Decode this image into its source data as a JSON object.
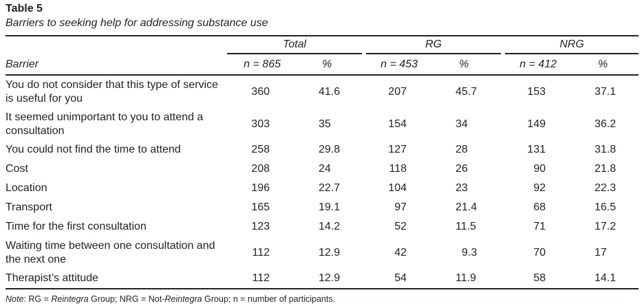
{
  "title": "Table 5",
  "subtitle": "Barriers to seeking help for addressing substance use",
  "groups": {
    "total": "Total",
    "rg": "RG",
    "nrg": "NRG"
  },
  "subheaders": {
    "barrier": "Barrier",
    "total_n": "n = 865",
    "total_pct": "%",
    "rg_n": "n = 453",
    "rg_pct": "%",
    "nrg_n": "n = 412",
    "nrg_pct": "%"
  },
  "rows": [
    {
      "barrier": "You do not consider that this type of service is useful for you",
      "total_n": "360",
      "total_pct": "41.6",
      "rg_n": "207",
      "rg_pct": "45.7",
      "nrg_n": "153",
      "nrg_pct": "37.1"
    },
    {
      "barrier": "It seemed unimportant to you to attend a consultation",
      "total_n": "303",
      "total_pct": "35",
      "rg_n": "154",
      "rg_pct": "34",
      "nrg_n": "149",
      "nrg_pct": "36.2"
    },
    {
      "barrier": "You could not find the time to attend",
      "total_n": "258",
      "total_pct": "29.8",
      "rg_n": "127",
      "rg_pct": "28",
      "nrg_n": "131",
      "nrg_pct": "31.8"
    },
    {
      "barrier": "Cost",
      "total_n": "208",
      "total_pct": "24",
      "rg_n": "118",
      "rg_pct": "26",
      "nrg_n": "90",
      "nrg_pct": "21.8"
    },
    {
      "barrier": "Location",
      "total_n": "196",
      "total_pct": "22.7",
      "rg_n": "104",
      "rg_pct": "23",
      "nrg_n": "92",
      "nrg_pct": "22.3"
    },
    {
      "barrier": "Transport",
      "total_n": "165",
      "total_pct": "19.1",
      "rg_n": "97",
      "rg_pct": "21.4",
      "nrg_n": "68",
      "nrg_pct": "16.5"
    },
    {
      "barrier": "Time for the first consultation",
      "total_n": "123",
      "total_pct": "14.2",
      "rg_n": "52",
      "rg_pct": "11.5",
      "nrg_n": "71",
      "nrg_pct": "17.2"
    },
    {
      "barrier": "Waiting time between one consultation and the next one",
      "total_n": "112",
      "total_pct": "12.9",
      "rg_n": "42",
      "rg_pct": "9.3",
      "nrg_n": "70",
      "nrg_pct": "17"
    },
    {
      "barrier": "Therapist’s attitude",
      "total_n": "112",
      "total_pct": "12.9",
      "rg_n": "54",
      "rg_pct": "11.9",
      "nrg_n": "58",
      "nrg_pct": "14.1"
    }
  ],
  "note": {
    "label": "Note",
    "p1": ": RG = ",
    "reintegra1": "Reintegra",
    "p2": " Group; NRG = Not-",
    "reintegra2": "Reintegra",
    "p3": " Group; n = number of participants."
  }
}
